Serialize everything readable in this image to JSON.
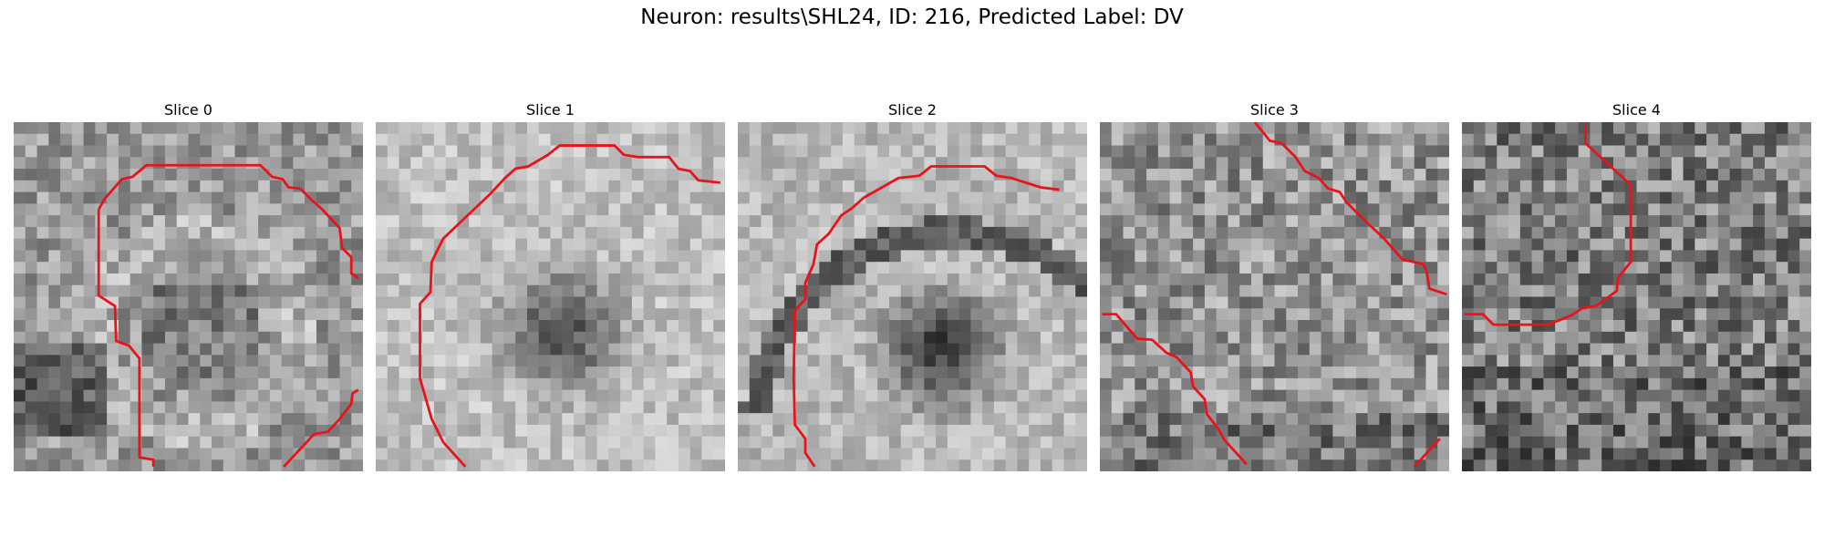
{
  "figure": {
    "title": "Neuron: results\\SHL24, ID: 216, Predicted Label: DV"
  },
  "panels": [
    {
      "title": "Slice 0",
      "seed": 11,
      "pattern": "ring_low"
    },
    {
      "title": "Slice 1",
      "seed": 23,
      "pattern": "bright_dark_center"
    },
    {
      "title": "Slice 2",
      "seed": 37,
      "pattern": "arc_dark_center"
    },
    {
      "title": "Slice 3",
      "seed": 51,
      "pattern": "noise"
    },
    {
      "title": "Slice 4",
      "seed": 67,
      "pattern": "noise_dark"
    }
  ],
  "colors": {
    "contour": "#e8141c",
    "background": "#ffffff"
  }
}
